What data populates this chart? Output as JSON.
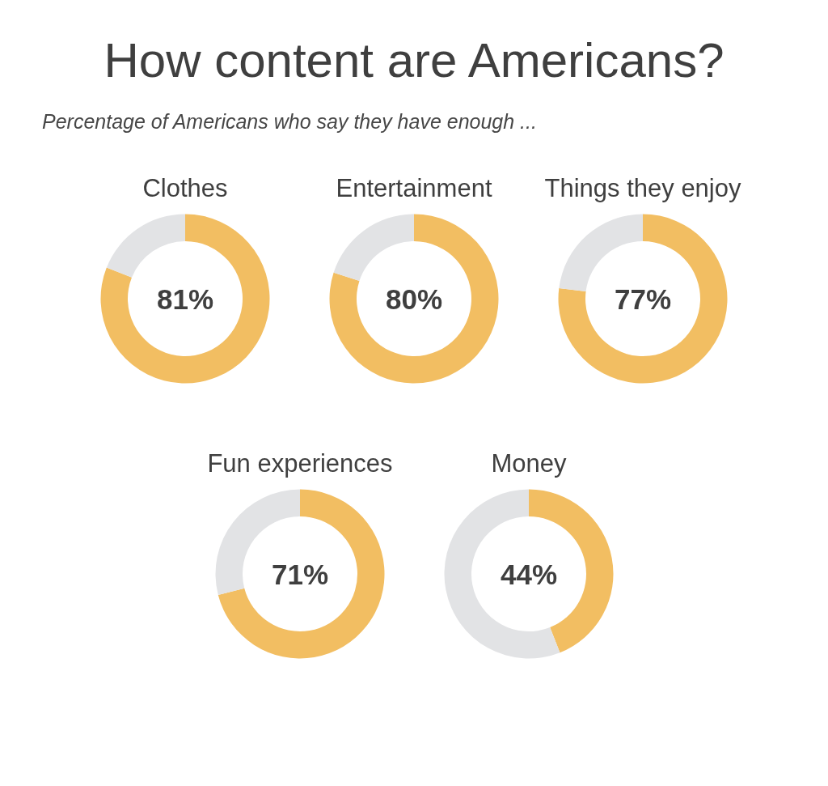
{
  "chart_data": [
    {
      "type": "other",
      "title": "How content are Americans?",
      "subtitle": "Percentage of Americans who say they have enough ..."
    },
    {
      "type": "donut",
      "title": "Clothes",
      "categories": [
        null,
        null
      ],
      "values": [
        81,
        19
      ],
      "colors": [
        "#f2be62",
        "#e2e3e5"
      ],
      "annotations": [
        "81%"
      ]
    },
    {
      "type": "donut",
      "title": "Entertainment",
      "categories": [
        null,
        null
      ],
      "values": [
        80,
        20
      ],
      "colors": [
        "#f2be62",
        "#e2e3e5"
      ],
      "annotations": [
        "80%"
      ]
    },
    {
      "type": "donut",
      "title": "Things they enjoy",
      "categories": [
        null,
        null
      ],
      "values": [
        77,
        23
      ],
      "colors": [
        "#f2be62",
        "#e2e3e5"
      ],
      "annotations": [
        "77%"
      ]
    },
    {
      "type": "donut",
      "title": "Fun experiences",
      "categories": [
        null,
        null
      ],
      "values": [
        71,
        29
      ],
      "colors": [
        "#f2be62",
        "#e2e3e5"
      ],
      "annotations": [
        "71%"
      ]
    },
    {
      "type": "donut",
      "title": "Money",
      "categories": [
        null,
        null
      ],
      "values": [
        44,
        56
      ],
      "colors": [
        "#f2be62",
        "#e2e3e5"
      ],
      "annotations": [
        "44%"
      ]
    }
  ]
}
